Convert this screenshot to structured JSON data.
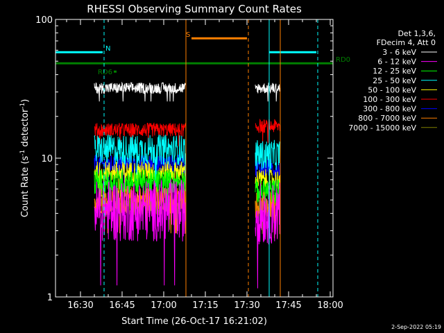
{
  "chart_data": {
    "type": "line",
    "title": "RHESSI Observing Summary Count Rates",
    "xlabel": "Start Time (26-Oct-17 16:21:02)",
    "ylabel_main": "Count Rate (s",
    "ylabel_sup1": "-1",
    "ylabel_mid": " detector",
    "ylabel_sup2": "-1",
    "ylabel_end": ")",
    "ylim": [
      1,
      100
    ],
    "log_y": true,
    "xlim_minutes": [
      0,
      100
    ],
    "y_ticks": [
      {
        "value": 1,
        "label": "1"
      },
      {
        "value": 10,
        "label": "10"
      },
      {
        "value": 100,
        "label": "100"
      }
    ],
    "x_ticks": [
      {
        "t": 9.0,
        "label": "16:30"
      },
      {
        "t": 24.0,
        "label": "16:45"
      },
      {
        "t": 39.0,
        "label": "17:00"
      },
      {
        "t": 54.0,
        "label": "17:15"
      },
      {
        "t": 69.0,
        "label": "17:30"
      },
      {
        "t": 84.0,
        "label": "17:45"
      },
      {
        "t": 99.0,
        "label": "18:00"
      }
    ],
    "legend_header": [
      "Det 1,3,6,",
      "FDecim 4, Att 0"
    ],
    "series": [
      {
        "name": "3 - 6 keV",
        "color": "#000000",
        "levels": [
          32,
          32
        ],
        "noise": 0.08
      },
      {
        "name": "6 - 12 keV",
        "color": "#ff00ff",
        "levels": [
          4.2,
          4.0
        ],
        "noise": 0.45
      },
      {
        "name": "12 - 25 keV",
        "color": "#00ff00",
        "levels": [
          6.8,
          5.8
        ],
        "noise": 0.18
      },
      {
        "name": "25 - 50 keV",
        "color": "#00ffff",
        "levels": [
          11.5,
          10.5
        ],
        "noise": 0.22
      },
      {
        "name": "50 - 100 keV",
        "color": "#ffff00",
        "levels": [
          8.0,
          7.0
        ],
        "noise": 0.15
      },
      {
        "name": "100 - 300 keV",
        "color": "#ff0000",
        "levels": [
          16,
          17
        ],
        "noise": 0.1
      },
      {
        "name": "300 - 800 keV",
        "color": "#0000ff",
        "levels": [
          9.0,
          8.5
        ],
        "noise": 0.14
      },
      {
        "name": "800 - 7000 keV",
        "color": "#ff8000",
        "levels": [
          5.0,
          4.6
        ],
        "noise": 0.2
      },
      {
        "name": "7000 - 15000 keV",
        "color": "#808000",
        "levels": [
          4.6,
          4.3
        ],
        "noise": 0.15
      }
    ],
    "segments": [
      {
        "start": 14.0,
        "end": 47.0
      },
      {
        "start": 72.0,
        "end": 81.0
      }
    ],
    "flag_bars": [
      {
        "label": "N",
        "color": "#00ffff",
        "y_frac": 0.118,
        "ranges": [
          [
            0,
            17
          ],
          [
            77,
            94
          ]
        ]
      },
      {
        "label": "S",
        "color": "#ff8000",
        "y_frac": 0.068,
        "ranges": [
          [
            49,
            69
          ]
        ]
      },
      {
        "label": "RD0",
        "color": "#008000",
        "y_frac": 0.158,
        "ranges": [
          [
            0,
            100
          ]
        ]
      },
      {
        "label": "RD6",
        "color": "#008000",
        "y_frac": 0.188,
        "ranges": [
          [
            21,
            22
          ]
        ]
      }
    ],
    "vlines": [
      {
        "t": 0.0,
        "color": "#00ffff",
        "dashed": false
      },
      {
        "t": 17.5,
        "color": "#00ffff",
        "dashed": true
      },
      {
        "t": 47.0,
        "color": "#ff8000",
        "dashed": false
      },
      {
        "t": 69.5,
        "color": "#ff8000",
        "dashed": true
      },
      {
        "t": 77.0,
        "color": "#00ffff",
        "dashed": false
      },
      {
        "t": 81.0,
        "color": "#ff8000",
        "dashed": false
      },
      {
        "t": 94.5,
        "color": "#00ffff",
        "dashed": true
      }
    ],
    "timestamp": "2-Sep-2022 05:19"
  }
}
